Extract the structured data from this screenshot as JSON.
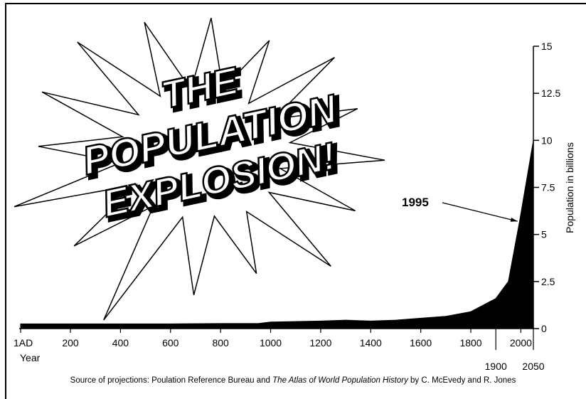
{
  "chart_data": {
    "type": "area",
    "title": [
      "THE",
      "POPULATION",
      "EXPLOSION!"
    ],
    "x": [
      1,
      200,
      400,
      600,
      800,
      950,
      1000,
      1200,
      1300,
      1400,
      1500,
      1600,
      1700,
      1800,
      1900,
      1950,
      1995,
      2050
    ],
    "series": [
      {
        "color": "#000000",
        "values": [
          0.25,
          0.25,
          0.25,
          0.25,
          0.27,
          0.27,
          0.35,
          0.4,
          0.45,
          0.4,
          0.45,
          0.55,
          0.65,
          0.9,
          1.6,
          2.5,
          5.7,
          10
        ]
      }
    ],
    "xlim": [
      1,
      2050
    ],
    "xticks": [
      {
        "value": 1,
        "label": "1AD"
      },
      200,
      400,
      600,
      800,
      1000,
      1200,
      1400,
      1600,
      1800,
      1900,
      2000,
      2050
    ],
    "ylim": [
      0,
      15
    ],
    "yticks": [
      0,
      2.5,
      5,
      7.5,
      10,
      12.5,
      15
    ],
    "x_label": "Year",
    "y_label": "Population in billions",
    "annotation": "1995",
    "source": {
      "prefix": "Source of projections: Poulation Reference Bureau and ",
      "title": "The Atlas of World Population History",
      "suffix": " by C. McEvedy and R. Jones"
    }
  }
}
